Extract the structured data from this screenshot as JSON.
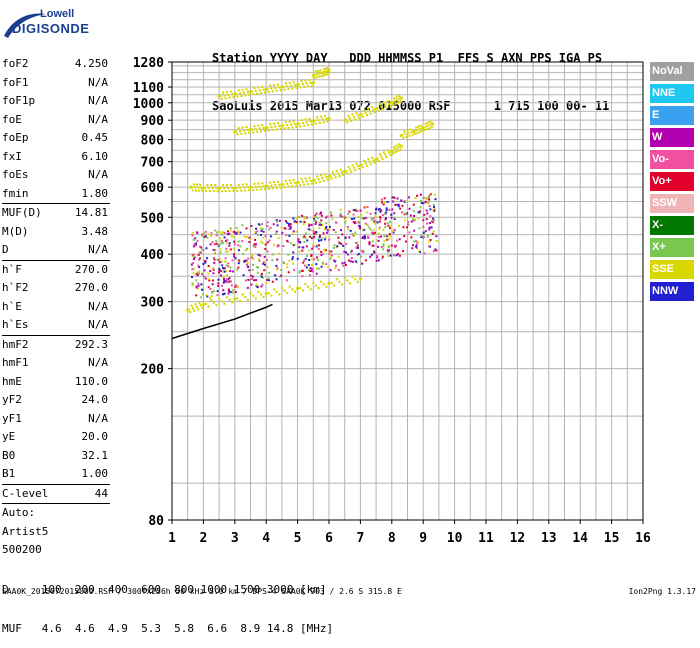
{
  "logo": {
    "line1": "Lowell",
    "line2": "DIGISONDE"
  },
  "header": {
    "row1": "Station YYYY DAY   DDD HHMMSS P1  FFS S AXN PPS IGA PS",
    "row2": "SaoLuis 2015 Mar13 072 015000 RSF      1 715 100 00- 11"
  },
  "params": [
    {
      "k": "foF2",
      "v": "4.250"
    },
    {
      "k": "foF1",
      "v": "N/A"
    },
    {
      "k": "foF1p",
      "v": "N/A"
    },
    {
      "k": "foE",
      "v": "N/A"
    },
    {
      "k": "foEp",
      "v": "0.45"
    },
    {
      "k": "fxI",
      "v": "6.10"
    },
    {
      "k": "foEs",
      "v": "N/A"
    },
    {
      "k": "fmin",
      "v": "1.80"
    },
    {
      "sep": true
    },
    {
      "k": "MUF(D)",
      "v": "14.81"
    },
    {
      "k": "M(D)",
      "v": "3.48"
    },
    {
      "k": "D",
      "v": "N/A"
    },
    {
      "sep": true
    },
    {
      "k": "h`F",
      "v": "270.0"
    },
    {
      "k": "h`F2",
      "v": "270.0"
    },
    {
      "k": "h`E",
      "v": "N/A"
    },
    {
      "k": "h`Es",
      "v": "N/A"
    },
    {
      "sep": true
    },
    {
      "k": "hmF2",
      "v": "292.3"
    },
    {
      "k": "hmF1",
      "v": "N/A"
    },
    {
      "k": "hmE",
      "v": "110.0"
    },
    {
      "k": "yF2",
      "v": "24.0"
    },
    {
      "k": "yF1",
      "v": "N/A"
    },
    {
      "k": "yE",
      "v": "20.0"
    },
    {
      "k": "B0",
      "v": "32.1"
    },
    {
      "k": "B1",
      "v": "1.00"
    },
    {
      "sep": true
    },
    {
      "k": "C-level",
      "v": "44"
    },
    {
      "sep": true
    },
    {
      "k": "Auto:",
      "v": ""
    },
    {
      "k": "Artist5",
      "v": ""
    },
    {
      "k": "500200",
      "v": ""
    }
  ],
  "legend": [
    {
      "label": "NoVal",
      "color": "#a0a0a0"
    },
    {
      "label": "NNE",
      "color": "#1ec8f0"
    },
    {
      "label": "E",
      "color": "#3aa0f0"
    },
    {
      "label": "W",
      "color": "#b000b0"
    },
    {
      "label": "Vo-",
      "color": "#f050a0"
    },
    {
      "label": "Vo+",
      "color": "#e0002a"
    },
    {
      "label": "SSW",
      "color": "#f0b4b4"
    },
    {
      "label": "X-",
      "color": "#007800"
    },
    {
      "label": "X+",
      "color": "#78c850"
    },
    {
      "label": "SSE",
      "color": "#d8d800"
    },
    {
      "label": "NNW",
      "color": "#2020d0"
    }
  ],
  "bottom": {
    "row1": "D     100  200  400  600  800 1000 1500 3000 [km]",
    "row2": "MUF   4.6  4.6  4.9  5.3  5.8  6.6  8.9 14.8 [MHz]"
  },
  "footer": {
    "left": "SAA0K_2015072015000.RSF / 300fx256h 50 kHz 5.0 km / DPS-4 SAA0K 903 / 2.6 S 315.8 E",
    "right": "Ion2Png 1.3.17"
  },
  "chart_data": {
    "type": "scatter",
    "title": "",
    "xlabel": "",
    "ylabel": "",
    "xlim": [
      1,
      16
    ],
    "ylim": [
      80,
      1280
    ],
    "xticks": [
      1,
      2,
      3,
      4,
      5,
      6,
      7,
      8,
      9,
      10,
      11,
      12,
      13,
      14,
      15,
      16
    ],
    "yticks": [
      80,
      200,
      300,
      400,
      500,
      600,
      700,
      800,
      900,
      1000,
      1100,
      1280
    ],
    "y_scale": "log",
    "grid": true,
    "series": [
      {
        "color": "#d8d800",
        "points": [
          [
            1.6,
            600
          ],
          [
            2.0,
            597
          ],
          [
            2.5,
            596
          ],
          [
            3.0,
            597
          ],
          [
            3.5,
            600
          ],
          [
            4.0,
            604
          ],
          [
            4.5,
            610
          ],
          [
            5.0,
            617
          ],
          [
            5.5,
            625
          ],
          [
            6.0,
            640
          ],
          [
            6.5,
            660
          ],
          [
            7.0,
            685
          ],
          [
            7.5,
            710
          ],
          [
            8.0,
            745
          ],
          [
            8.3,
            770
          ]
        ]
      },
      {
        "color": "#d8d800",
        "points": [
          [
            3.0,
            840
          ],
          [
            3.5,
            850
          ],
          [
            4.0,
            860
          ],
          [
            4.5,
            870
          ],
          [
            5.0,
            880
          ],
          [
            5.5,
            895
          ],
          [
            6.0,
            910
          ]
        ]
      },
      {
        "color": "#d8d800",
        "points": [
          [
            2.5,
            1040
          ],
          [
            3.0,
            1055
          ],
          [
            3.5,
            1070
          ],
          [
            4.0,
            1085
          ],
          [
            4.5,
            1100
          ],
          [
            5.0,
            1115
          ],
          [
            5.5,
            1130
          ]
        ]
      },
      {
        "color": "#d8d800",
        "points": [
          [
            6.5,
            900
          ],
          [
            7.0,
            930
          ],
          [
            7.5,
            965
          ],
          [
            8.0,
            1000
          ],
          [
            8.3,
            1030
          ]
        ]
      },
      {
        "color": "#d8d800",
        "points": [
          [
            8.3,
            820
          ],
          [
            8.7,
            840
          ],
          [
            9.0,
            860
          ],
          [
            9.3,
            880
          ]
        ]
      },
      {
        "color": "#d8d800",
        "points": [
          [
            5.5,
            1180
          ],
          [
            5.8,
            1200
          ],
          [
            6.0,
            1215
          ]
        ]
      },
      {
        "color": "#d8d800",
        "points": [
          [
            1.5,
            285
          ],
          [
            2.0,
            295
          ],
          [
            3.0,
            305
          ],
          [
            4.0,
            315
          ],
          [
            5.0,
            325
          ],
          [
            6.0,
            335
          ],
          [
            7.0,
            345
          ]
        ]
      }
    ],
    "trace": {
      "color": "#000000",
      "points": [
        [
          1.0,
          240
        ],
        [
          2.0,
          255
        ],
        [
          3.0,
          270
        ],
        [
          3.5,
          280
        ],
        [
          4.0,
          290
        ],
        [
          4.2,
          295
        ]
      ]
    }
  }
}
